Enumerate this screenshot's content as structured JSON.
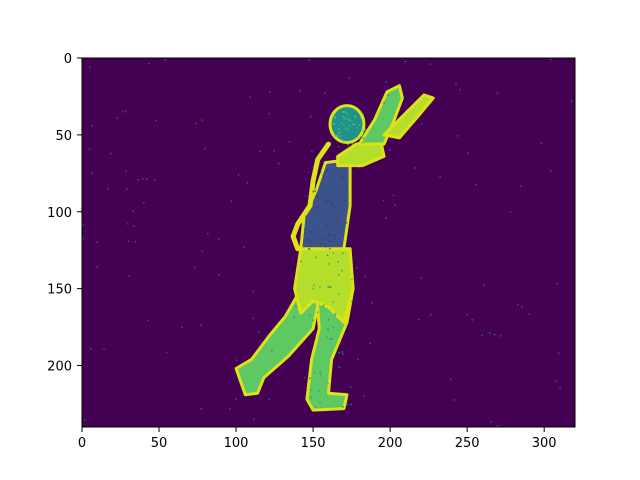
{
  "chart_data": {
    "type": "heatmap",
    "title": "",
    "xlabel": "",
    "ylabel": "",
    "image_width": 320,
    "image_height": 240,
    "xlim": [
      0,
      320
    ],
    "ylim": [
      240,
      0
    ],
    "x_ticks": [
      0,
      50,
      100,
      150,
      200,
      250,
      300
    ],
    "y_ticks": [
      0,
      50,
      100,
      150,
      200
    ],
    "colormap": "viridis",
    "content": "segmentation-style intensity map of a person walking with both arms raised; low-value background, high-value outline/limbs, mid-value torso",
    "colors": {
      "background": "#440154",
      "outline": "#dde318",
      "fill_high": "#b5de2b",
      "fill_mid": "#5ec962",
      "fill_low": "#21918c",
      "torso": "#3b528b",
      "noise": "#2c728e"
    }
  }
}
